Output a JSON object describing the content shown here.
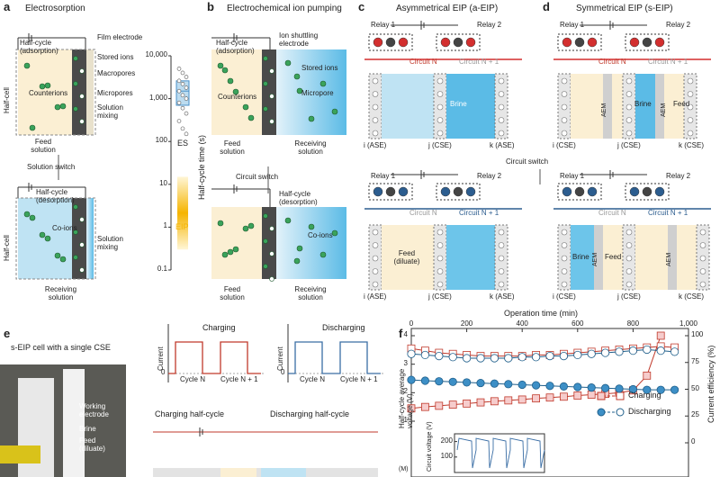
{
  "panel_a": {
    "label": "a",
    "title": "Electrosorption",
    "adsorption": "Half-cycle (adsorption)",
    "film_electrode": "Film electrode",
    "stored_ions": "Stored ions",
    "macropores": "Macropores",
    "counterions": "Counterions",
    "micropores": "Micropores",
    "solution_mixing_1": "Solution mixing",
    "half_cell_1": "Half-cell",
    "feed_solution": "Feed solution",
    "solution_switch": "Solution switch",
    "desorption": "Half-cycle (desorption)",
    "co_ions": "Co-ions",
    "solution_mixing_2": "Solution mixing",
    "half_cell_2": "Half-cell",
    "receiving_solution": "Receiving solution",
    "chart": {
      "type": "scatter",
      "ylabel": "Half-cycle time (s)",
      "log_y": true,
      "ylim": [
        0.1,
        10000
      ],
      "yticks": [
        0.1,
        1,
        10,
        100,
        {
          "value": 1000,
          "label": "1,000"
        },
        {
          "value": 10000,
          "label": "10,000"
        }
      ],
      "es_label": "ES",
      "es_values": [
        5000,
        4000,
        3200,
        2600,
        2200,
        1800,
        1500,
        1200,
        1000,
        800,
        600,
        450,
        300,
        200,
        150
      ],
      "es_box": {
        "q1": 700,
        "median": 1500,
        "q3": 2600
      },
      "es_color": "#4a90c8",
      "eip_label": "EIP",
      "eip_range": [
        0.3,
        15
      ],
      "eip_color": "#f5b400"
    }
  },
  "panel_b": {
    "label": "b",
    "title": "Electrochemical ion pumping",
    "adsorption": "Half-cycle (adsorption)",
    "ion_shuttling": "Ion shuttling electrode",
    "stored_ions": "Stored ions",
    "counterions": "Counterions",
    "micropore": "Micropore",
    "feed_solution_1": "Feed solution",
    "receiving_solution_1": "Receiving solution",
    "circuit_switch": "Circuit switch",
    "desorption": "Half-cycle (desorption)",
    "co_ions": "Co-ions",
    "feed_solution_2": "Feed solution",
    "receiving_solution_2": "Receiving solution"
  },
  "panel_c": {
    "label": "c",
    "title": "Asymmetrical EIP (a-EIP)",
    "top": {
      "relay_1": "Relay 1",
      "relay_2": "Relay 2",
      "circuit_n": "Circuit N",
      "circuit_n1": "Circuit N + 1",
      "brine": "Brine",
      "i": "i (ASE)",
      "j": "j (CSE)",
      "k": "k (ASE)"
    },
    "bottom": {
      "relay_1": "Relay 1",
      "relay_2": "Relay 2",
      "circuit_n": "Circuit N",
      "circuit_n1": "Circuit N + 1",
      "feed": "Feed (diluate)",
      "i": "i (ASE)",
      "j": "j (CSE)",
      "k": "k (ASE)"
    }
  },
  "circuit_switch": "Circuit switch",
  "panel_d": {
    "label": "d",
    "title": "Symmetrical EIP (s-EIP)",
    "top": {
      "relay_1": "Relay 1",
      "relay_2": "Relay 2",
      "circuit_n": "Circuit N",
      "circuit_n1": "Circuit N + 1",
      "aem_1": "AEM",
      "brine": "Brine",
      "aem_2": "AEM",
      "feed": "Feed",
      "i": "i (CSE)",
      "j": "j (CSE)",
      "k": "k (CSE)"
    },
    "bottom": {
      "relay_1": "Relay 1",
      "relay_2": "Relay 2",
      "circuit_n": "Circuit N",
      "circuit_n1": "Circuit N + 1",
      "brine": "Brine",
      "aem_1": "AEM",
      "feed": "Feed",
      "aem_2": "AEM",
      "i": "i (CSE)",
      "j": "j (CSE)",
      "k": "k (CSE)"
    }
  },
  "panel_e": {
    "label": "e",
    "photo_title": "s-EIP cell with a single CSE",
    "working_electrode": "Working electrode",
    "brine": "Brine",
    "feed": "Feed (diluate)",
    "charging": {
      "ylabel": "Current",
      "title": "Charging",
      "zero": "0",
      "cycle_n": "Cycle N",
      "cycle_n1": "Cycle N + 1"
    },
    "discharging": {
      "ylabel": "Current",
      "title": "Discharging",
      "zero": "0",
      "cycle_n": "Cycle N",
      "cycle_n1": "Cycle N + 1"
    },
    "charging_half": "Charging half-cycle",
    "discharging_half": "Discharging half-cycle"
  },
  "panel_f": {
    "label": "f",
    "chart": {
      "type": "line",
      "xlabel": "Operation time (min)",
      "ylabel": "Half-cycle average voltage (V)",
      "y2label": "Current efficiency (%)",
      "xlim": [
        0,
        1000
      ],
      "xticks": [
        0,
        200,
        400,
        600,
        800,
        {
          "value": 1000,
          "label": "1,000"
        }
      ],
      "ylim": [
        1,
        4
      ],
      "yticks": [
        1,
        2,
        3,
        4
      ],
      "y2lim": [
        0,
        100
      ],
      "y2ticks": [
        0,
        25,
        50,
        75,
        100
      ],
      "x": [
        0,
        50,
        100,
        150,
        200,
        250,
        300,
        350,
        400,
        450,
        500,
        550,
        600,
        650,
        700,
        750,
        800,
        850,
        900,
        950
      ],
      "series": [
        {
          "name": "Charging",
          "color": "#c0392b",
          "fill": "#f6cccc",
          "voltage": [
            1.45,
            1.5,
            1.54,
            1.58,
            1.62,
            1.66,
            1.7,
            1.73,
            1.76,
            1.8,
            1.83,
            1.86,
            1.9,
            1.93,
            1.96,
            2.0,
            2.08,
            2.6,
            4.0,
            null
          ],
          "efficiency": [
            88,
            86,
            84,
            83,
            82,
            81,
            81,
            81,
            81,
            82,
            82,
            83,
            84,
            85,
            86,
            87,
            88,
            89,
            90,
            89
          ]
        },
        {
          "name": "Discharging",
          "color": "#1f5f8b",
          "fill": "#3d8fc6",
          "voltage": [
            2.45,
            2.42,
            2.4,
            2.38,
            2.36,
            2.34,
            2.32,
            2.3,
            2.28,
            2.26,
            2.24,
            2.22,
            2.2,
            2.18,
            2.16,
            2.14,
            2.12,
            2.1,
            2.1,
            2.1
          ],
          "efficiency": [
            83,
            82,
            81,
            80,
            79,
            79,
            79,
            79,
            80,
            80,
            81,
            81,
            82,
            83,
            84,
            85,
            86,
            87,
            86,
            85
          ]
        }
      ],
      "inset": {
        "ylabel": "Circuit voltage (V)",
        "ylim": [
          0,
          250
        ],
        "yticks": [
          100,
          200
        ]
      },
      "bottom_label": "(M)"
    }
  }
}
